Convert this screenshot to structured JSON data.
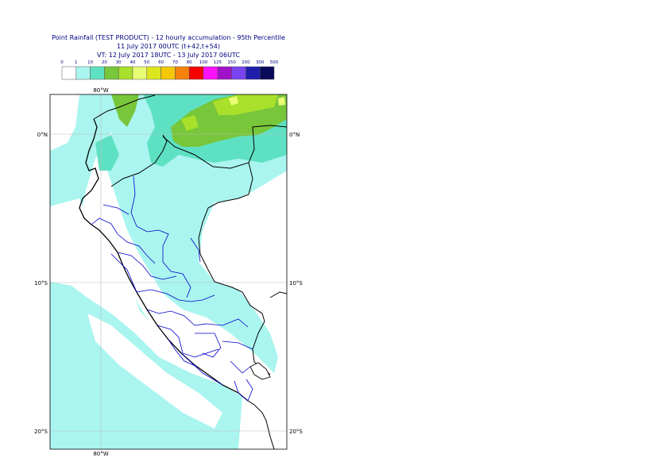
{
  "header": {
    "title": "Point Rainfall (TEST PRODUCT) - 12 hourly accumulation - 95th Percentile",
    "base_time": "11 July 2017 00UTC (t+42,t+54)",
    "valid_time": "VT: 12 July 2017 18UTC - 13 July 2017 06UTC"
  },
  "legend": {
    "thresholds": [
      "0",
      "1",
      "10",
      "20",
      "30",
      "40",
      "50",
      "60",
      "70",
      "80",
      "100",
      "125",
      "150",
      "200",
      "300",
      "500"
    ],
    "colors": [
      "#ffffff",
      "#aaf5ef",
      "#5ee1c3",
      "#78c63a",
      "#a8e02c",
      "#e8fc74",
      "#dce61e",
      "#f5c80a",
      "#f6820c",
      "#f80000",
      "#ff10ff",
      "#a012c8",
      "#7845f0",
      "#1e1eaa",
      "#0a0a5a"
    ]
  },
  "map": {
    "lon_labels": {
      "top": "80°W",
      "bottom": "80°W"
    },
    "lat_labels": [
      {
        "left": "0°N",
        "right": "0°N"
      },
      {
        "left": "10°S",
        "right": "10°S"
      },
      {
        "left": "20°S",
        "right": "20°S"
      }
    ],
    "colors": {
      "ocean_rain": "#aaf5ef",
      "land_background": "#ffffff",
      "medium_rain": "#5ee1c3",
      "heavy_rain": "#78c63a",
      "very_heavy_rain": "#a8e02c",
      "extreme_rain": "#e8fc74",
      "coastline": "#000000",
      "borders": "#0000cc",
      "gridlines": "#bbbbbb"
    }
  }
}
